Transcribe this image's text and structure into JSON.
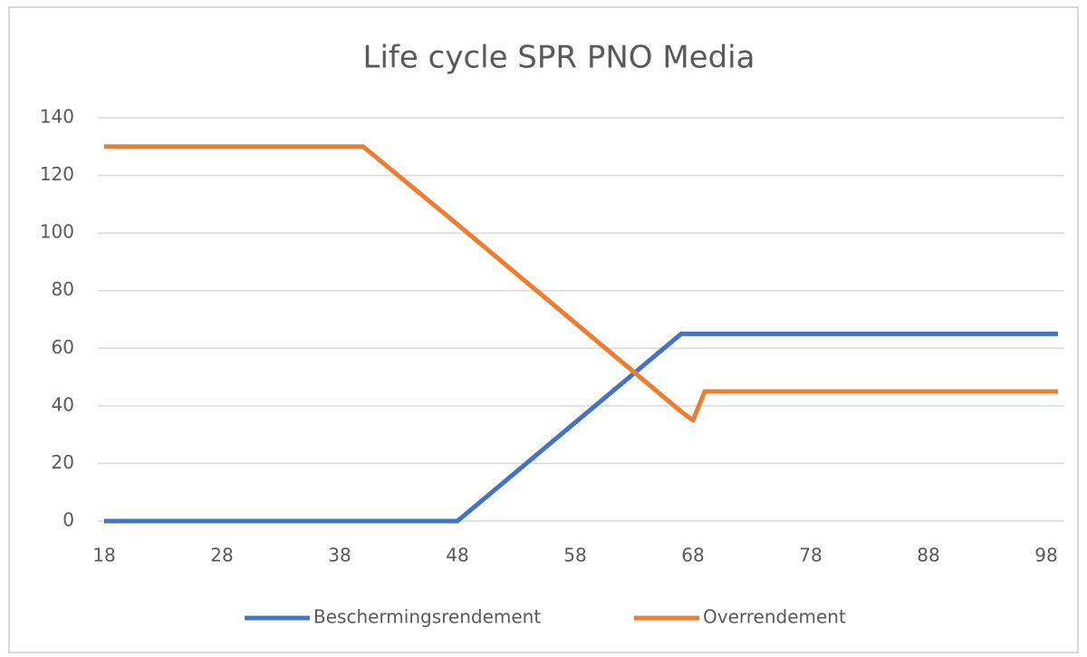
{
  "chart_data": {
    "type": "line",
    "title": "Life cycle SPR PNO Media",
    "x": [
      18,
      40,
      48,
      67,
      68,
      69,
      99
    ],
    "series": [
      {
        "name": "Beschermingsrendement",
        "color": "#4472c4",
        "values": [
          0,
          0,
          0,
          65,
          65,
          65,
          65
        ]
      },
      {
        "name": "Overrendement",
        "color": "#ed7d31",
        "values": [
          130,
          130,
          103,
          38,
          35,
          45,
          45
        ]
      }
    ],
    "xlim": [
      18,
      99
    ],
    "xticks": [
      18,
      28,
      38,
      48,
      58,
      68,
      78,
      88,
      98
    ],
    "ylim": [
      0,
      140
    ],
    "yticks": [
      0,
      20,
      40,
      60,
      80,
      100,
      120,
      140
    ],
    "grid": true,
    "legend": "bottom"
  }
}
